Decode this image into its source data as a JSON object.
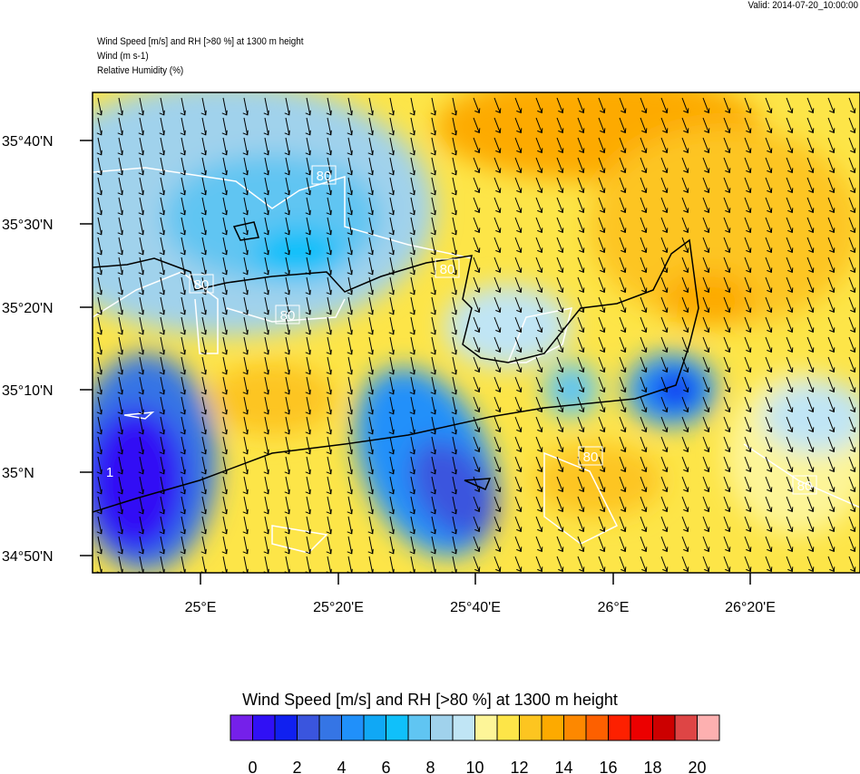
{
  "valid": "Valid: 2014-07-20_10:00:00",
  "titles": [
    "Wind Speed [m/s] and RH [>80 %] at 1300 m height",
    "Wind   (m s-1)",
    "Relative Humidity   (%)"
  ],
  "chart_data": {
    "type": "heatmap",
    "title": "Wind Speed [m/s] and RH [>80 %] at 1300 m height",
    "lat_ticks": [
      "35°40'N",
      "35°30'N",
      "35°20'N",
      "35°10'N",
      "35°N",
      "34°50'N"
    ],
    "lon_ticks": [
      "25°E",
      "25°20'E",
      "25°40'E",
      "26°E",
      "26°20'E"
    ],
    "contour_labels": [
      "80",
      "80",
      "80",
      "80",
      "80",
      "80",
      "1"
    ],
    "colorbar": {
      "title": "Wind Speed [m/s] and RH [>80 %] at 1300 m height",
      "tick_labels": [
        "0",
        "2",
        "4",
        "6",
        "8",
        "10",
        "12",
        "14",
        "16",
        "18",
        "20"
      ],
      "colors": [
        "#7520ea",
        "#3010f5",
        "#1020f0",
        "#3a55de",
        "#3575e5",
        "#2090fa",
        "#10a8f5",
        "#10c0fa",
        "#60c5f2",
        "#a0d2ec",
        "#c0e5f5",
        "#fdf598",
        "#fde548",
        "#fdc520",
        "#fdaa00",
        "#fd8800",
        "#fd6000",
        "#fd2000",
        "#ec0000",
        "#cc0000",
        "#de4545",
        "#fdb0b0"
      ]
    }
  }
}
